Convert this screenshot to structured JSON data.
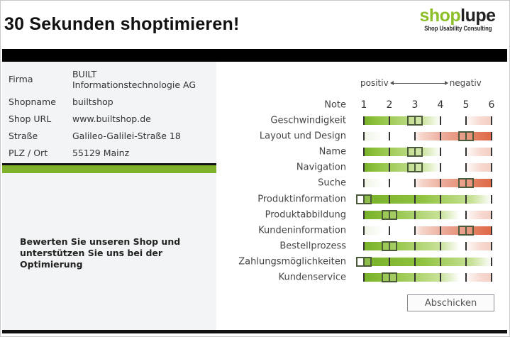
{
  "header": {
    "title": "30 Sekunden shoptimieren!",
    "logo": {
      "word_part1": "shop",
      "word_part2": "lupe",
      "tagline": "Shop Usability Consulting"
    }
  },
  "shop_info": {
    "rows": [
      {
        "label": "Firma",
        "value_line1": "BUILT",
        "value_line2": "Informationstechnologie AG"
      },
      {
        "label": "Shopname",
        "value": "builtshop"
      },
      {
        "label": "Shop URL",
        "value": "www.builtshop.de"
      },
      {
        "label": "Straße",
        "value": "Galileo-Galilei-Straße 18"
      },
      {
        "label": "PLZ / Ort",
        "value": "55129 Mainz"
      }
    ]
  },
  "cta": {
    "text": "Bewerten Sie unseren Shop und unterstützen Sie uns bei der Optimierung"
  },
  "rating": {
    "scale_hint": {
      "positive": "positiv",
      "negative": "negativ"
    },
    "note_label": "Note",
    "scale": [
      "1",
      "2",
      "3",
      "4",
      "5",
      "6"
    ],
    "criteria": [
      {
        "label": "Geschwindigkeit",
        "value": 3
      },
      {
        "label": "Layout und Design",
        "value": 5
      },
      {
        "label": "Name",
        "value": 3
      },
      {
        "label": "Navigation",
        "value": 3
      },
      {
        "label": "Suche",
        "value": 5
      },
      {
        "label": "Produktinformation",
        "value": 1
      },
      {
        "label": "Produktabbildung",
        "value": 2
      },
      {
        "label": "Kundeninformation",
        "value": 5
      },
      {
        "label": "Bestellprozess",
        "value": 2
      },
      {
        "label": "Zahlungsmöglichkeiten",
        "value": 1
      },
      {
        "label": "Kundenservice",
        "value": 2
      }
    ],
    "colors": {
      "positive": "#7fb22a",
      "negative": "#e06a4a",
      "marker": "#4a5a3a"
    }
  },
  "actions": {
    "submit_label": "Abschicken"
  },
  "colors": {
    "brand_green": "#7fb22a",
    "bar_black": "#000000",
    "panel_bg": "#f2f4f5"
  }
}
